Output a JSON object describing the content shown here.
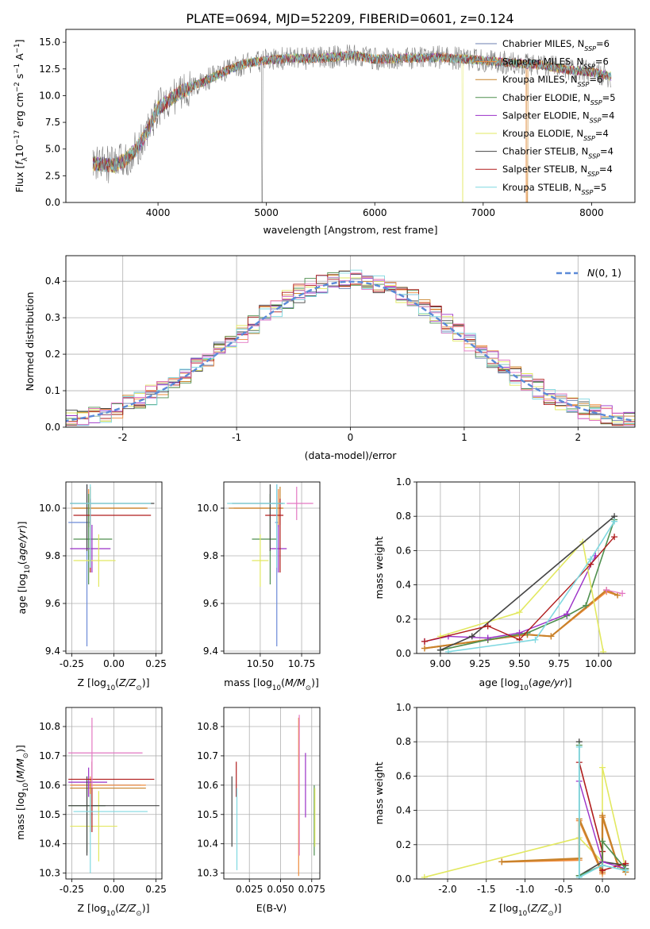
{
  "figure": {
    "suptitle": "PLATE=0694, MJD=52209, FIBERID=0601, z=0.124"
  },
  "colors": {
    "chabrier_miles": "#1f77b4",
    "salpeter_miles": "#ff7f0e",
    "kroupa_miles": "#2ca02c",
    "chabrier_elodie": "#d62728",
    "salpeter_elodie": "#9467bd",
    "kroupa_elodie": "#8c564b",
    "chabrier_stelib": "#e377c2",
    "salpeter_stelib": "#7f7f7f",
    "kroupa_stelib": "#bcbd22"
  },
  "chart_data": [
    {
      "id": "spectrum",
      "type": "line",
      "title": "",
      "xlabel": "wavelength [Angstrom, rest frame]",
      "ylabel": "Flux [f_λ 10^-17 erg cm^-2 s^-1 A^-1]",
      "xlim": [
        3150,
        8400
      ],
      "ylim": [
        0,
        16.2
      ],
      "xticks": [
        4000,
        5000,
        6000,
        7000,
        8000
      ],
      "yticks": [
        0.0,
        2.5,
        5.0,
        7.5,
        10.0,
        12.5,
        15.0
      ],
      "legend_position": "upper-right",
      "legend": [
        {
          "label": "Chabrier MILES, N_SSP=6",
          "color": "#6c7fb0"
        },
        {
          "label": "Salpeter MILES, N_SSP=6",
          "color": "#ee8a3a"
        },
        {
          "label": "Kroupa MILES, N_SSP=6",
          "color": "#c8822a"
        },
        {
          "label": "Chabrier ELODIE, N_SSP=5",
          "color": "#4f8f4f"
        },
        {
          "label": "Salpeter ELODIE, N_SSP=4",
          "color": "#9b30c8"
        },
        {
          "label": "Kroupa ELODIE, N_SSP=4",
          "color": "#e2e860"
        },
        {
          "label": "Chabrier STELIB, N_SSP=4",
          "color": "#444444"
        },
        {
          "label": "Salpeter STELIB, N_SSP=4",
          "color": "#b01c1c"
        },
        {
          "label": "Kroupa STELIB, N_SSP=5",
          "color": "#7fd8e0"
        }
      ],
      "data_range": [
        3400,
        8180
      ],
      "continuum": {
        "x": [
          3400,
          3600,
          3700,
          3800,
          3900,
          4000,
          4200,
          4400,
          4600,
          4800,
          5000,
          5200,
          5500,
          5800,
          6000,
          6300,
          6600,
          7000,
          7200,
          7500,
          7800,
          8000,
          8180
        ],
        "y": [
          3.6,
          3.5,
          4.0,
          5.0,
          6.6,
          8.8,
          10.3,
          11.2,
          12.2,
          13.0,
          13.3,
          13.5,
          13.5,
          13.8,
          13.4,
          13.5,
          13.6,
          13.3,
          13.1,
          12.9,
          12.4,
          12.2,
          11.8
        ]
      }
    },
    {
      "id": "residuals",
      "type": "histogram",
      "xlabel": "(data-model)/error",
      "ylabel": "Normed distribution",
      "xlim": [
        -2.5,
        2.5
      ],
      "ylim": [
        0,
        0.47
      ],
      "xticks": [
        -2,
        -1,
        0,
        1,
        2
      ],
      "yticks": [
        0.0,
        0.1,
        0.2,
        0.3,
        0.4
      ],
      "grid": true,
      "bin_width": 0.1,
      "gauss_label": "N(0,1)",
      "gauss_color": "#5b8ad8",
      "legend_position": "upper-right"
    },
    {
      "id": "age_vs_Z",
      "type": "errorbar",
      "xlabel": "Z [log10(Z/Z_sun)]",
      "ylabel": "age [log10(age/yr)]",
      "xlim": [
        -0.285,
        0.285
      ],
      "ylim": [
        9.39,
        10.11
      ],
      "xticks": [
        -0.25,
        0.0,
        0.25
      ],
      "yticks": [
        9.4,
        9.6,
        9.8,
        10.0
      ],
      "grid": true,
      "points": [
        {
          "x": -0.16,
          "xerr": [
            0.11,
            0.02
          ],
          "y": 9.94,
          "yerr": [
            0.52,
            0.16
          ],
          "c": "#6c8ad8"
        },
        {
          "x": -0.15,
          "xerr": [
            0.1,
            0.34
          ],
          "y": 10.0,
          "yerr": [
            0.08,
            0.08
          ],
          "c": "#ee8a3a"
        },
        {
          "x": -0.14,
          "xerr": [
            0.1,
            0.34
          ],
          "y": 10.0,
          "yerr": [
            0.07,
            0.09
          ],
          "c": "#c8822a"
        },
        {
          "x": -0.15,
          "xerr": [
            0.09,
            0.14
          ],
          "y": 9.87,
          "yerr": [
            0.19,
            0.19
          ],
          "c": "#4f8f4f"
        },
        {
          "x": -0.13,
          "xerr": [
            0.13,
            0.11
          ],
          "y": 9.83,
          "yerr": [
            0.1,
            0.1
          ],
          "c": "#9b30c8"
        },
        {
          "x": -0.09,
          "xerr": [
            0.15,
            0.1
          ],
          "y": 9.78,
          "yerr": [
            0.11,
            0.11
          ],
          "c": "#e2e860"
        },
        {
          "x": -0.16,
          "xerr": [
            0.1,
            0.4
          ],
          "y": 10.02,
          "yerr": [
            0.2,
            0.08
          ],
          "c": "#444444"
        },
        {
          "x": -0.14,
          "xerr": [
            0.1,
            0.36
          ],
          "y": 9.97,
          "yerr": [
            0.24,
            0.07
          ],
          "c": "#b01c1c"
        },
        {
          "x": -0.14,
          "xerr": [
            0.12,
            0.36
          ],
          "y": 10.02,
          "yerr": [
            0.27,
            0.08
          ],
          "c": "#7fd8e0"
        }
      ]
    },
    {
      "id": "age_vs_mass",
      "type": "errorbar",
      "xlabel": "mass [log10(M/M_sun)]",
      "ylabel": "",
      "xlim": [
        10.28,
        10.86
      ],
      "ylim": [
        9.39,
        10.11
      ],
      "xticks": [
        10.5,
        10.75
      ],
      "yticks": [
        9.4,
        9.6,
        9.8,
        10.0
      ],
      "tick_labels_x": [
        "10.50",
        "10.75"
      ],
      "grid": true,
      "points": [
        {
          "x": 10.6,
          "xerr": [
            0.01,
            0.01
          ],
          "y": 9.94,
          "yerr": [
            0.52,
            0.16
          ],
          "c": "#6c8ad8"
        },
        {
          "x": 10.61,
          "xerr": [
            0.27,
            0.02
          ],
          "y": 10.0,
          "yerr": [
            0.08,
            0.08
          ],
          "c": "#ee8a3a"
        },
        {
          "x": 10.62,
          "xerr": [
            0.31,
            0.02
          ],
          "y": 10.0,
          "yerr": [
            0.07,
            0.09
          ],
          "c": "#c8822a"
        },
        {
          "x": 10.56,
          "xerr": [
            0.11,
            0.04
          ],
          "y": 9.87,
          "yerr": [
            0.19,
            0.19
          ],
          "c": "#4f8f4f"
        },
        {
          "x": 10.61,
          "xerr": [
            0.05,
            0.05
          ],
          "y": 9.83,
          "yerr": [
            0.1,
            0.1
          ],
          "c": "#9b30c8"
        },
        {
          "x": 10.5,
          "xerr": [
            0.05,
            0.05
          ],
          "y": 9.78,
          "yerr": [
            0.11,
            0.11
          ],
          "c": "#e2e860"
        },
        {
          "x": 10.56,
          "xerr": [
            0.23,
            0.08
          ],
          "y": 10.02,
          "yerr": [
            0.2,
            0.08
          ],
          "c": "#444444"
        },
        {
          "x": 10.62,
          "xerr": [
            0.09,
            0.02
          ],
          "y": 9.97,
          "yerr": [
            0.24,
            0.07
          ],
          "c": "#b01c1c"
        },
        {
          "x": 10.6,
          "xerr": [
            0.3,
            0.05
          ],
          "y": 10.02,
          "yerr": [
            0.27,
            0.08
          ],
          "c": "#7fd8e0"
        },
        {
          "x": 10.72,
          "xerr": [
            0.06,
            0.1
          ],
          "y": 10.02,
          "yerr": [
            0.07,
            0.07
          ],
          "c": "#e377c2"
        }
      ]
    },
    {
      "id": "mass_weight_vs_age",
      "type": "line",
      "xlabel": "age [log10(age/yr)]",
      "ylabel": "mass weight",
      "xlim": [
        8.85,
        10.23
      ],
      "ylim": [
        0,
        1.0
      ],
      "xticks": [
        9.0,
        9.25,
        9.5,
        9.75,
        10.0
      ],
      "yticks": [
        0.0,
        0.2,
        0.4,
        0.6,
        0.8,
        1.0
      ],
      "grid": true,
      "series": [
        {
          "c": "#ee8a3a",
          "w": 2,
          "x": [
            8.9,
            9.3,
            9.55,
            9.7,
            10.05,
            10.12
          ],
          "y": [
            0.03,
            0.08,
            0.11,
            0.1,
            0.36,
            0.34
          ]
        },
        {
          "c": "#c8822a",
          "w": 2,
          "x": [
            8.9,
            9.3,
            9.55,
            9.7,
            10.05,
            10.12
          ],
          "y": [
            0.03,
            0.08,
            0.11,
            0.1,
            0.37,
            0.34
          ]
        },
        {
          "c": "#e377c2",
          "w": 1.2,
          "x": [
            10.05,
            10.15
          ],
          "y": [
            0.37,
            0.35
          ]
        },
        {
          "c": "#4f8f4f",
          "w": 1.6,
          "x": [
            9.0,
            9.3,
            9.55,
            9.8,
            9.92,
            10.1
          ],
          "y": [
            0.02,
            0.08,
            0.12,
            0.22,
            0.28,
            0.78
          ]
        },
        {
          "c": "#9b30c8",
          "w": 1.4,
          "x": [
            8.9,
            9.05,
            9.3,
            9.5,
            9.8,
            9.98
          ],
          "y": [
            0.07,
            0.1,
            0.09,
            0.12,
            0.23,
            0.57
          ]
        },
        {
          "c": "#e2e860",
          "w": 1.6,
          "x": [
            9.0,
            9.5,
            9.9,
            10.03
          ],
          "y": [
            0.1,
            0.24,
            0.65,
            0.01
          ]
        },
        {
          "c": "#444444",
          "w": 1.6,
          "x": [
            9.0,
            9.2,
            10.1
          ],
          "y": [
            0.02,
            0.1,
            0.8
          ]
        },
        {
          "c": "#b01c1c",
          "w": 1.4,
          "x": [
            8.9,
            9.3,
            9.5,
            9.95,
            10.1
          ],
          "y": [
            0.07,
            0.16,
            0.08,
            0.52,
            0.68
          ]
        },
        {
          "c": "#7fd8e0",
          "w": 1.6,
          "x": [
            9.05,
            9.6,
            9.95,
            10.1
          ],
          "y": [
            0.01,
            0.08,
            0.55,
            0.77
          ]
        }
      ]
    },
    {
      "id": "mass_vs_Z",
      "type": "errorbar",
      "xlabel": "Z [log10(Z/Z_sun)]",
      "ylabel": "mass [log10(M/M_sun)]",
      "xlim": [
        -0.285,
        0.285
      ],
      "ylim": [
        10.28,
        10.865
      ],
      "xticks": [
        -0.25,
        0.0,
        0.25
      ],
      "yticks": [
        10.3,
        10.4,
        10.5,
        10.6,
        10.7,
        10.8
      ],
      "grid": true,
      "points": [
        {
          "x": -0.15,
          "xerr": [
            0.1,
            0.31
          ],
          "y": 10.6,
          "yerr": [
            0.01,
            0.01
          ],
          "c": "#6c8ad8"
        },
        {
          "x": -0.14,
          "xerr": [
            0.12,
            0.33
          ],
          "y": 10.6,
          "yerr": [
            0.13,
            0.03
          ],
          "c": "#ee8a3a"
        },
        {
          "x": -0.14,
          "xerr": [
            0.12,
            0.33
          ],
          "y": 10.59,
          "yerr": [
            0.15,
            0.03
          ],
          "c": "#c8822a"
        },
        {
          "x": -0.16,
          "xerr": [
            0.11,
            0.11
          ],
          "y": 10.53,
          "yerr": [
            0.16,
            0.06
          ],
          "c": "#4f8f4f"
        },
        {
          "x": -0.15,
          "xerr": [
            0.12,
            0.11
          ],
          "y": 10.61,
          "yerr": [
            0.05,
            0.05
          ],
          "c": "#9b30c8"
        },
        {
          "x": -0.09,
          "xerr": [
            0.17,
            0.11
          ],
          "y": 10.46,
          "yerr": [
            0.12,
            0.12
          ],
          "c": "#e2e860"
        },
        {
          "x": -0.16,
          "xerr": [
            0.11,
            0.43
          ],
          "y": 10.53,
          "yerr": [
            0.17,
            0.1
          ],
          "c": "#444444"
        },
        {
          "x": -0.13,
          "xerr": [
            0.14,
            0.37
          ],
          "y": 10.62,
          "yerr": [
            0.18,
            0.06
          ],
          "c": "#b01c1c"
        },
        {
          "x": -0.14,
          "xerr": [
            0.1,
            0.34
          ],
          "y": 10.51,
          "yerr": [
            0.21,
            0.06
          ],
          "c": "#7fd8e0"
        },
        {
          "x": -0.13,
          "xerr": [
            0.14,
            0.3
          ],
          "y": 10.71,
          "yerr": [
            0.12,
            0.12
          ],
          "c": "#e377c2"
        }
      ]
    },
    {
      "id": "mass_vs_ebv",
      "type": "errorbar",
      "xlabel": "E(B-V)",
      "ylabel": "",
      "xlim": [
        0.0045,
        0.0815
      ],
      "ylim": [
        10.28,
        10.865
      ],
      "xticks": [
        0.025,
        0.05,
        0.075
      ],
      "yticks": [
        10.3,
        10.4,
        10.5,
        10.6,
        10.7,
        10.8
      ],
      "tick_labels_x": [
        "0.025",
        "0.050",
        "0.075"
      ],
      "grid": true,
      "points": [
        {
          "x": 0.011,
          "xerr": [
            0,
            0
          ],
          "y": 10.51,
          "yerr": [
            0.12,
            0.12
          ],
          "c": "#444444"
        },
        {
          "x": 0.0145,
          "xerr": [
            0,
            0
          ],
          "y": 10.62,
          "yerr": [
            0.06,
            0.06
          ],
          "c": "#b01c1c"
        },
        {
          "x": 0.015,
          "xerr": [
            0,
            0
          ],
          "y": 10.45,
          "yerr": [
            0.14,
            0.14
          ],
          "c": "#7fd8e0"
        },
        {
          "x": 0.0645,
          "xerr": [
            0,
            0
          ],
          "y": 10.56,
          "yerr": [
            0.27,
            0.27
          ],
          "c": "#ee8a3a"
        },
        {
          "x": 0.065,
          "xerr": [
            0,
            0
          ],
          "y": 10.6,
          "yerr": [
            0.24,
            0.24
          ],
          "c": "#e377c2"
        },
        {
          "x": 0.07,
          "xerr": [
            0,
            0
          ],
          "y": 10.6,
          "yerr": [
            0.11,
            0.11
          ],
          "c": "#9b30c8"
        },
        {
          "x": 0.077,
          "xerr": [
            0,
            0
          ],
          "y": 10.48,
          "yerr": [
            0.12,
            0.12
          ],
          "c": "#4f8f4f"
        },
        {
          "x": 0.0775,
          "xerr": [
            0,
            0
          ],
          "y": 10.49,
          "yerr": [
            0.1,
            0.1
          ],
          "c": "#e2e860"
        }
      ]
    },
    {
      "id": "mass_weight_vs_Z",
      "type": "line",
      "xlabel": "Z [log10(Z/Z_sun)]",
      "ylabel": "mass weight",
      "xlim": [
        -2.4,
        0.42
      ],
      "ylim": [
        0,
        1.0
      ],
      "xticks": [
        -2.0,
        -1.5,
        -1.0,
        -0.5,
        0.0
      ],
      "yticks": [
        0.0,
        0.2,
        0.4,
        0.6,
        0.8,
        1.0
      ],
      "grid": true,
      "series": [
        {
          "c": "#e2e860",
          "w": 1.6,
          "x": [
            -2.3,
            -0.3,
            0.0,
            0.0,
            0.3
          ],
          "y": [
            0.01,
            0.24,
            0.1,
            0.65,
            0.06
          ]
        },
        {
          "c": "#ee8a3a",
          "w": 2.2,
          "x": [
            -1.3,
            -0.3,
            -0.3,
            0.0,
            0.0,
            0.2,
            0.3
          ],
          "y": [
            0.1,
            0.11,
            0.34,
            0.03,
            0.36,
            0.08,
            0.04
          ]
        },
        {
          "c": "#c8822a",
          "w": 2.2,
          "x": [
            -1.3,
            -0.3,
            -0.3,
            0.0,
            0.0,
            0.2,
            0.3
          ],
          "y": [
            0.1,
            0.12,
            0.35,
            0.04,
            0.37,
            0.08,
            0.04
          ]
        },
        {
          "c": "#444444",
          "w": 1.6,
          "x": [
            -0.3,
            -0.3,
            0.0,
            0.3
          ],
          "y": [
            0.8,
            0.02,
            0.1,
            0.08
          ]
        },
        {
          "c": "#b01c1c",
          "w": 1.6,
          "x": [
            -0.3,
            0.0,
            0.0,
            0.3
          ],
          "y": [
            0.68,
            0.16,
            0.05,
            0.09
          ]
        },
        {
          "c": "#9b30c8",
          "w": 1.4,
          "x": [
            -0.3,
            0.0,
            0.3
          ],
          "y": [
            0.57,
            0.1,
            0.06
          ]
        },
        {
          "c": "#4f8f4f",
          "w": 1.6,
          "x": [
            -0.3,
            -0.3,
            0.0,
            0.0,
            0.3
          ],
          "y": [
            0.78,
            0.02,
            0.08,
            0.22,
            0.06
          ]
        },
        {
          "c": "#7fd8e0",
          "w": 1.8,
          "x": [
            -0.3,
            -0.3,
            0.0,
            0.3
          ],
          "y": [
            0.77,
            0.01,
            0.08,
            0.05
          ]
        }
      ]
    }
  ]
}
